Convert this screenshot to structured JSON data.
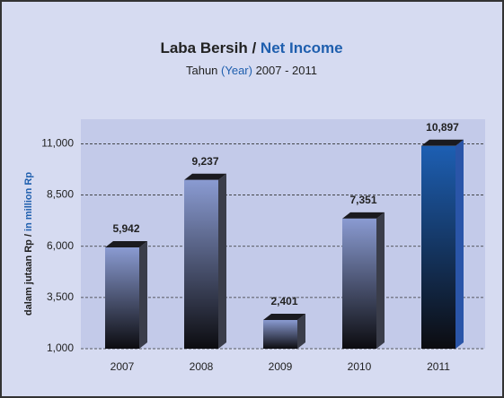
{
  "chart_data": {
    "type": "bar3d",
    "title": [
      "Laba Bersih / ",
      "Net Income"
    ],
    "subtitle": [
      "Tahun ",
      "(Year)",
      " 2007 - 2011"
    ],
    "y_label": [
      "dalam jutaan Rp / ",
      " in million Rp"
    ],
    "categories": [
      "2007",
      "2008",
      "2009",
      "2010",
      "2011"
    ],
    "values": [
      5942,
      9237,
      2401,
      7351,
      10897
    ],
    "value_labels": [
      "5,942",
      "9,237",
      "2,401",
      "7,351",
      "10,897"
    ],
    "colors": [
      "#8a9bd2",
      "#8a9bd2",
      "#8a9bd2",
      "#8a9bd2",
      "#1d5fb3"
    ],
    "ylim": [
      1000,
      12200
    ],
    "yticks": [
      {
        "value": 1000,
        "label": "1,000"
      },
      {
        "value": 3500,
        "label": "3,500"
      },
      {
        "value": 6000,
        "label": "6,000"
      },
      {
        "value": 8500,
        "label": "8,500"
      },
      {
        "value": 11000,
        "label": "11,000"
      }
    ],
    "grid": true
  }
}
